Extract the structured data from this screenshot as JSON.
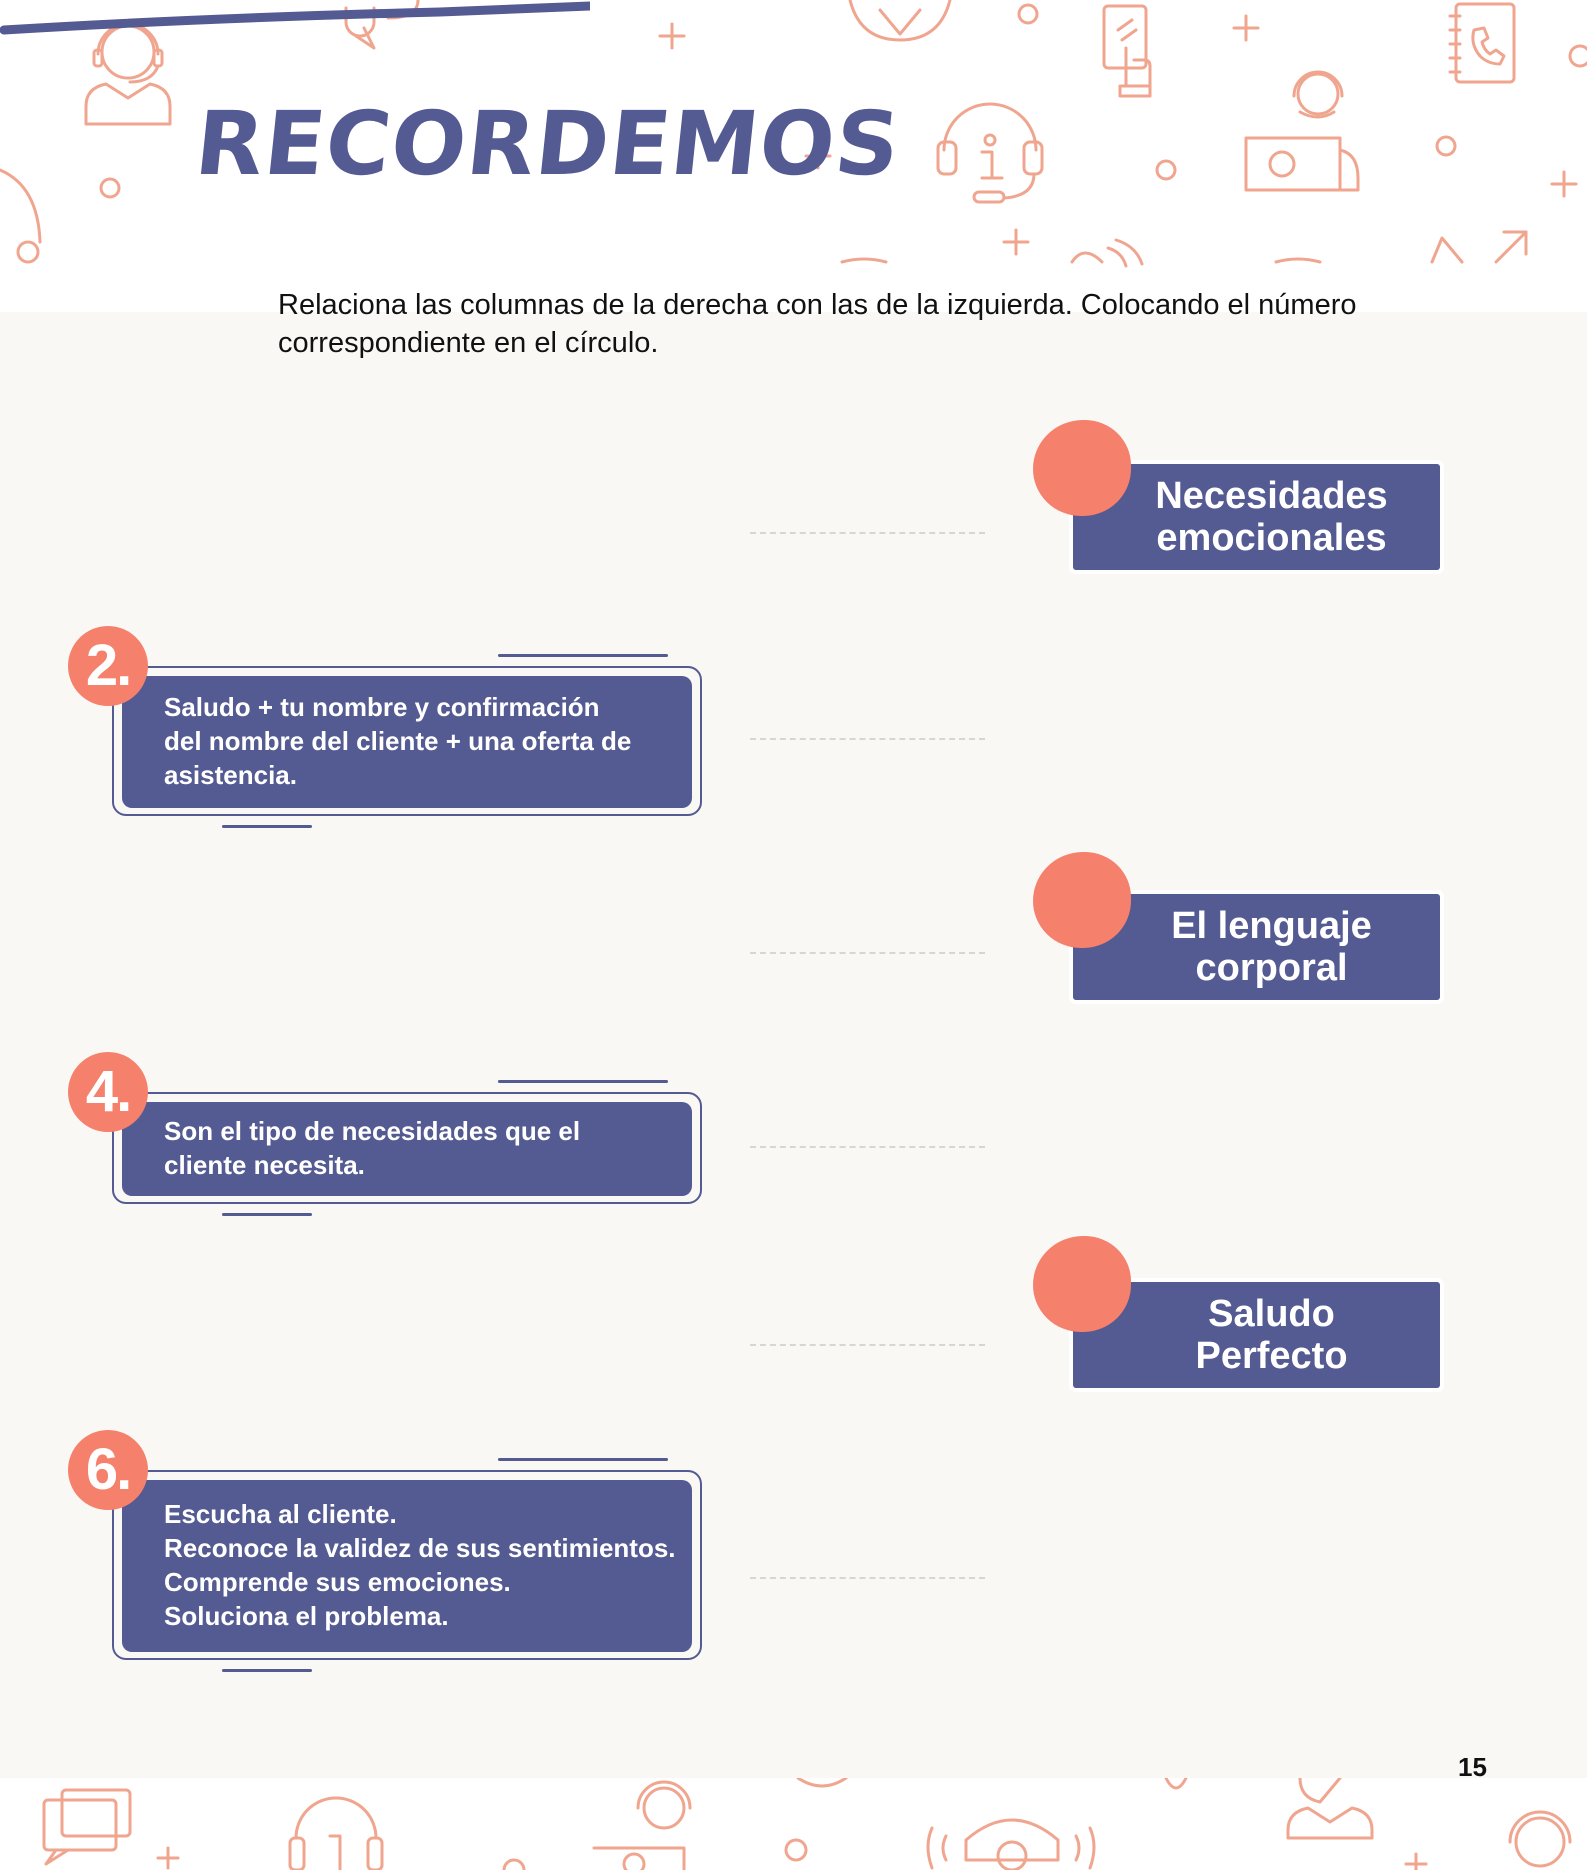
{
  "header": {
    "title": "RECORDEMOS"
  },
  "instruction": "Relaciona las columnas de la derecha con las de la izquierda. Colocando el número correspondiente en el círculo.",
  "left_items": [
    {
      "number": "2.",
      "text": "Saludo + tu nombre y confirmación\ndel nombre del cliente + una oferta de\nasistencia."
    },
    {
      "number": "4.",
      "text": "Son el tipo de necesidades que el\ncliente necesita."
    },
    {
      "number": "6.",
      "text": "Escucha al cliente.\nReconoce la validez de sus sentimientos.\nComprende sus emociones.\nSoluciona el problema."
    }
  ],
  "right_items": [
    {
      "text": "Necesidades\nemocionales"
    },
    {
      "text": "El lenguaje\ncorporal"
    },
    {
      "text": "Saludo\nPerfecto"
    }
  ],
  "page_number": "15",
  "colors": {
    "accent": "#f5806c",
    "primary": "#545a92",
    "panel": "#f9f8f5",
    "icon_line": "#f0a58f"
  },
  "decorative_icons": [
    "headset-agent-icon",
    "phone-hand-icon",
    "globe-icon",
    "touch-phone-icon",
    "address-book-icon",
    "info-headset-icon",
    "laptop-agent-icon",
    "speech-bubbles-icon",
    "telephone-icon",
    "plus-icon",
    "circle-icon",
    "arrow-icon"
  ]
}
